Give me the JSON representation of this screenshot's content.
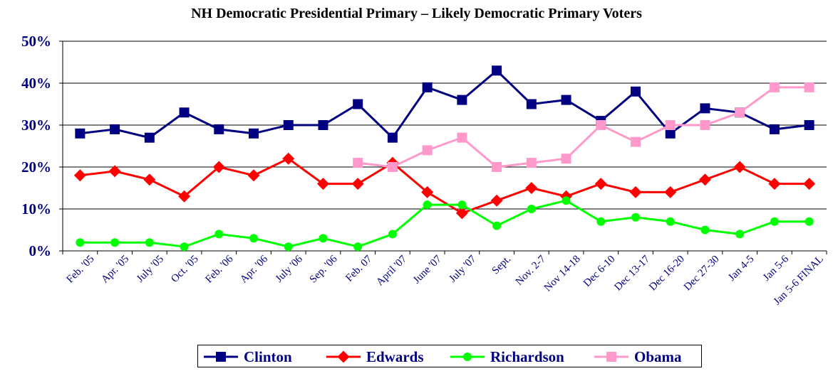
{
  "chart_data": {
    "type": "line",
    "title": "NH Democratic Presidential Primary – Likely Democratic Primary Voters",
    "xlabel": "",
    "ylabel": "",
    "ylim": [
      0,
      50
    ],
    "ytick_labels": [
      "0%",
      "10%",
      "20%",
      "30%",
      "40%",
      "50%"
    ],
    "grid": true,
    "legend_position": "bottom",
    "categories": [
      "Feb. '05",
      "Apr. '05",
      "July '05",
      "Oct. '05",
      "Feb. '06",
      "Apr. '06",
      "July '06",
      "Sep. '06",
      "Feb. 07",
      "April '07",
      "June '07",
      "July '07",
      "Sept.",
      "Nov. 2-7",
      "Nov 14-18",
      "Dec 6-10",
      "Dec 13-17",
      "Dec 16-20",
      "Dec 27-30",
      "Jan 4-5",
      "Jan 5-6",
      "Jan 5-6 FINAL"
    ],
    "series": [
      {
        "name": "Clinton",
        "color": "#000080",
        "marker": "square",
        "values": [
          28,
          29,
          27,
          33,
          29,
          28,
          30,
          30,
          35,
          27,
          39,
          36,
          43,
          35,
          36,
          31,
          38,
          28,
          34,
          33,
          29,
          30
        ]
      },
      {
        "name": "Edwards",
        "color": "#ff0000",
        "marker": "diamond",
        "values": [
          18,
          19,
          17,
          13,
          20,
          18,
          22,
          16,
          16,
          21,
          14,
          9,
          12,
          15,
          13,
          16,
          14,
          14,
          17,
          20,
          16,
          16
        ]
      },
      {
        "name": "Richardson",
        "color": "#00ff00",
        "marker": "circle",
        "values": [
          2,
          2,
          2,
          1,
          4,
          3,
          1,
          3,
          1,
          4,
          11,
          11,
          6,
          10,
          12,
          7,
          8,
          7,
          5,
          4,
          7,
          7
        ]
      },
      {
        "name": "Obama",
        "color": "#ff99cc",
        "marker": "square",
        "values": [
          null,
          null,
          null,
          null,
          null,
          null,
          null,
          null,
          21,
          20,
          24,
          27,
          20,
          21,
          22,
          30,
          26,
          30,
          30,
          33,
          39,
          39
        ]
      }
    ]
  }
}
